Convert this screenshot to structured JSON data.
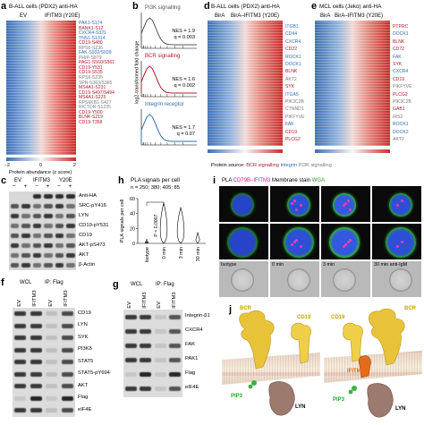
{
  "panel_a": {
    "letter": "a",
    "title": "B-ALL cells (PDX2) anti-HA",
    "col_ev": "EV",
    "col_ifitm3": "IFITM3 (Y20E)",
    "genes": [
      {
        "t": "PAK1-S174",
        "c": "blue"
      },
      {
        "t": "BANK1-S12",
        "c": "red"
      },
      {
        "t": "CXCR4-S321",
        "c": "blue"
      },
      {
        "t": "TNS1-S1314",
        "c": "blue"
      },
      {
        "t": "CD19-S480",
        "c": "red"
      },
      {
        "t": "RPS6-S236",
        "c": "grey"
      },
      {
        "t": "FAK-S932/S939",
        "c": "blue"
      },
      {
        "t": "PHIP-S879",
        "c": "grey"
      },
      {
        "t": "PAG1-S560/S561",
        "c": "red"
      },
      {
        "t": "CD19-Y531",
        "c": "red"
      },
      {
        "t": "CD19-S535",
        "c": "red"
      },
      {
        "t": "RPS6-S235",
        "c": "grey"
      },
      {
        "t": "SPN-S363/S365",
        "c": "grey"
      },
      {
        "t": "MS4A1-S231",
        "c": "red"
      },
      {
        "t": "CD19-S497/S494",
        "c": "red"
      },
      {
        "t": "MS4A1-S225",
        "c": "red"
      },
      {
        "t": "RPS6KB1-S427",
        "c": "grey"
      },
      {
        "t": "RICTOR-S1235",
        "c": "grey"
      },
      {
        "t": "CD19-Y500",
        "c": "red"
      },
      {
        "t": "BLNK-S219",
        "c": "red"
      },
      {
        "t": "CD19-T358",
        "c": "red"
      }
    ],
    "scale_min": "−2",
    "scale_mid": "0",
    "scale_max": "2",
    "scale_label": "Protein abundance (z score)"
  },
  "panel_b": {
    "letter": "b",
    "ylabel": "log2-transformed fold change",
    "plots": [
      {
        "title": "PI3K signalling",
        "nes": "NES = 1.9",
        "q": "q = 0.003",
        "color": "#555555"
      },
      {
        "title": "BCR signalling",
        "nes": "NES = 1.6",
        "q": "q = 0.002",
        "color": "#b2182b"
      },
      {
        "title": "Integrin receptor",
        "nes": "NES = 1.7",
        "q": "q = 0.07",
        "color": "#2f6db5"
      }
    ]
  },
  "panel_d": {
    "letter": "d",
    "title": "B-ALL cells (PDX2) anti-HA",
    "col_left": "BirA",
    "col_right": "BirA–IFITM3 (Y20E)",
    "genes": [
      {
        "t": "ITGB1",
        "c": "blue"
      },
      {
        "t": "CD44",
        "c": "blue"
      },
      {
        "t": "CXCR4",
        "c": "blue"
      },
      {
        "t": "CD22",
        "c": "red"
      },
      {
        "t": "ROCK1",
        "c": "blue"
      },
      {
        "t": "DOCK1",
        "c": "blue"
      },
      {
        "t": "BLNK",
        "c": "red"
      },
      {
        "t": "AKT2",
        "c": "grey"
      },
      {
        "t": "SYK",
        "c": "red"
      },
      {
        "t": "ITGA5",
        "c": "blue"
      },
      {
        "t": "PIK3C2B",
        "c": "grey"
      },
      {
        "t": "CTNND1",
        "c": "grey"
      },
      {
        "t": "PIKFYVE",
        "c": "grey"
      },
      {
        "t": "FAK",
        "c": "blue"
      },
      {
        "t": "CD19",
        "c": "red"
      },
      {
        "t": "PLCG2",
        "c": "red"
      }
    ],
    "legend_pre": "Protein source: ",
    "legend_bcr": "BCR signalling",
    "legend_integrin": "Integrin",
    "legend_pi3k": "PI3K signalling"
  },
  "panel_e": {
    "letter": "e",
    "title": "MCL cells (Jeko) anti-HA",
    "col_left": "BirA",
    "col_right": "BirA–IFITM3 (Y20E)",
    "genes": [
      {
        "t": "PTPRC",
        "c": "red"
      },
      {
        "t": "DOCK1",
        "c": "blue"
      },
      {
        "t": "BLNK",
        "c": "red"
      },
      {
        "t": "CD72",
        "c": "red"
      },
      {
        "t": "FAK",
        "c": "blue"
      },
      {
        "t": "SYK",
        "c": "red"
      },
      {
        "t": "CXCR4",
        "c": "blue"
      },
      {
        "t": "CD19",
        "c": "red"
      },
      {
        "t": "PIKFYVE",
        "c": "grey"
      },
      {
        "t": "PLCG2",
        "c": "red"
      },
      {
        "t": "PIK3C2B",
        "c": "grey"
      },
      {
        "t": "GAB1",
        "c": "red"
      },
      {
        "t": "IRS2",
        "c": "grey"
      },
      {
        "t": "ROCK1",
        "c": "blue"
      },
      {
        "t": "DOCK2",
        "c": "blue"
      },
      {
        "t": "AKT2",
        "c": "grey"
      }
    ]
  },
  "panel_c": {
    "letter": "c",
    "col_ev": "EV",
    "col_ifitm3": "IFITM3",
    "col_y20e": "Y20E",
    "signs": [
      "−",
      "+",
      "−",
      "+",
      "−",
      "+"
    ],
    "bands": [
      "Anti-HA",
      "SRC-pY416",
      "LYN",
      "CD19-pY531",
      "CD19",
      "AKT-pS473",
      "AKT",
      "β-Actin"
    ]
  },
  "panel_h": {
    "letter": "h",
    "title": "PLA signals per cell",
    "n_label": "n = 250; 380; 405; 85",
    "ylabel": "PLA signals per cell",
    "p_value": "P = 0.0007",
    "categories": [
      "Isotype",
      "0 min",
      "3 min",
      "30 min"
    ],
    "yticks": [
      "0",
      "20",
      "40",
      "60"
    ]
  },
  "panel_i": {
    "letter": "i",
    "title_pla": "PLA ",
    "title_cd79b": "CD79B–IFITM3",
    "title_membrane": " Membrane stain ",
    "title_wga": "WGA",
    "labels": [
      "Isotype",
      "0 min",
      "3 min",
      "30 min anti-IgM"
    ]
  },
  "panel_f": {
    "letter": "f",
    "col_wcl": "WCL",
    "col_ip": "IP: Flag",
    "lanes": [
      "EV",
      "IFITM3",
      "EV",
      "IFITM3"
    ],
    "bands": [
      "CD19",
      "LYN",
      "SYK",
      "PI3Kδ",
      "STAT5",
      "STAT5-pY694",
      "AKT",
      "Flag",
      "eIF4E"
    ]
  },
  "panel_g": {
    "letter": "g",
    "col_wcl": "WCL",
    "col_ip": "IP: Flag",
    "lanes": [
      "EV",
      "IFITM3",
      "EV",
      "IFITM3"
    ],
    "bands": [
      "Integrin-β1",
      "CXCR4",
      "FAK",
      "PAK1",
      "Flag",
      "eIF4E"
    ]
  },
  "panel_j": {
    "letter": "j",
    "labels_left": {
      "bcr": "BCR",
      "cd19": "CD19",
      "pip3": "PIP3",
      "lyn": "LYN"
    },
    "labels_right": {
      "cd19": "CD19",
      "bcr": "BCR",
      "ifitm3": "IFITM3",
      "pip3": "PIP3",
      "lyn": "LYN"
    }
  }
}
